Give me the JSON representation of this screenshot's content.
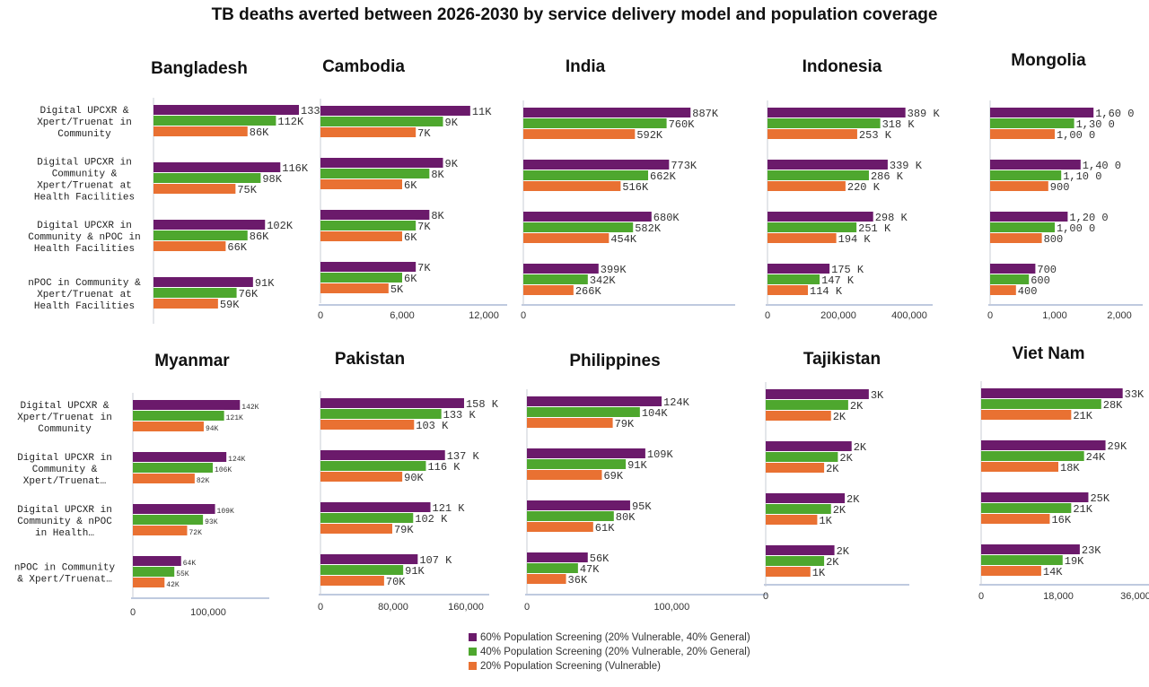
{
  "title": "TB deaths averted between 2026-2030 by service delivery model and population coverage",
  "legend": [
    {
      "label": "60% Population Screening (20% Vulnerable, 40% General)",
      "color": "#6b1a6b"
    },
    {
      "label": "40% Population Screening (20% Vulnerable, 20% General)",
      "color": "#4ea72e"
    },
    {
      "label": "20% Population Screening (Vulnerable)",
      "color": "#e97132"
    }
  ],
  "chart_data": [
    {
      "type": "bar",
      "title": "Bangladesh",
      "categories": [
        "Digital UPCXR & Xpert/Truenat in Community",
        "Digital UPCXR in Community & Xpert/Truenat at Health Facilities",
        "Digital UPCXR in Community & nPOC in Health Facilities",
        "nPOC in Community & Xpert/Truenat at Health Facilities"
      ],
      "series": [
        {
          "name": "60% Population Screening (20% Vulnerable, 40% General)",
          "values": [
            133000,
            116000,
            102000,
            91000
          ],
          "labels": [
            "133K",
            "116K",
            "102K",
            "91K"
          ]
        },
        {
          "name": "40% Population Screening (20% Vulnerable, 20% General)",
          "values": [
            112000,
            98000,
            86000,
            76000
          ],
          "labels": [
            "112K",
            "98K",
            "86K",
            "76K"
          ]
        },
        {
          "name": "20% Population Screening (Vulnerable)",
          "values": [
            86000,
            75000,
            66000,
            59000
          ],
          "labels": [
            "86K",
            "75K",
            "66K",
            "59K"
          ]
        }
      ],
      "xlim": [
        0,
        133000
      ],
      "xticks": []
    },
    {
      "type": "bar",
      "title": "Cambodia",
      "categories": [
        "Digital UPCXR & Xpert/Truenat in Community",
        "Digital UPCXR in Community & Xpert/Truenat at Health Facilities",
        "Digital UPCXR in Community & nPOC in Health Facilities",
        "nPOC in Community & Xpert/Truenat at Health Facilities"
      ],
      "series": [
        {
          "name": "60% Population Screening (20% Vulnerable, 40% General)",
          "values": [
            11000,
            9000,
            8000,
            7000
          ],
          "labels": [
            "11K",
            "9K",
            "8K",
            "7K"
          ]
        },
        {
          "name": "40% Population Screening (20% Vulnerable, 20% General)",
          "values": [
            9000,
            8000,
            7000,
            6000
          ],
          "labels": [
            "9K",
            "8K",
            "7K",
            "6K"
          ]
        },
        {
          "name": "20% Population Screening (Vulnerable)",
          "values": [
            7000,
            6000,
            6000,
            5000
          ],
          "labels": [
            "7K",
            "6K",
            "6K",
            "5K"
          ]
        }
      ],
      "xlim": [
        0,
        12000
      ],
      "xticks": [
        "0",
        "6,000",
        "12,000"
      ]
    },
    {
      "type": "bar",
      "title": "India",
      "categories": [
        "Digital UPCXR & Xpert/Truenat in Community",
        "Digital UPCXR in Community & Xpert/Truenat at Health Facilities",
        "Digital UPCXR in Community & nPOC in Health Facilities",
        "nPOC in Community & Xpert/Truenat at Health Facilities"
      ],
      "series": [
        {
          "name": "60% Population Screening (20% Vulnerable, 40% General)",
          "values": [
            887000,
            773000,
            680000,
            399000
          ],
          "labels": [
            "887K",
            "773K",
            "680K",
            "399K"
          ]
        },
        {
          "name": "40% Population Screening (20% Vulnerable, 20% General)",
          "values": [
            760000,
            662000,
            582000,
            342000
          ],
          "labels": [
            "760K",
            "662K",
            "582K",
            "342K"
          ]
        },
        {
          "name": "20% Population Screening (Vulnerable)",
          "values": [
            592000,
            516000,
            454000,
            266000
          ],
          "labels": [
            "592K",
            "516K",
            "454K",
            "266K"
          ]
        }
      ],
      "xlim": [
        0,
        1000000
      ],
      "xticks": [
        "0"
      ]
    },
    {
      "type": "bar",
      "title": "Indonesia",
      "categories": [
        "Digital UPCXR & Xpert/Truenat in Community",
        "Digital UPCXR in Community & Xpert/Truenat at Health Facilities",
        "Digital UPCXR in Community & nPOC in Health Facilities",
        "nPOC in Community & Xpert/Truenat at Health Facilities"
      ],
      "series": [
        {
          "name": "60% Population Screening (20% Vulnerable, 40% General)",
          "values": [
            389000,
            339000,
            298000,
            175000
          ],
          "labels": [
            "389 K",
            "339 K",
            "298 K",
            "175 K"
          ]
        },
        {
          "name": "40% Population Screening (20% Vulnerable, 20% General)",
          "values": [
            318000,
            286000,
            251000,
            147000
          ],
          "labels": [
            "318 K",
            "286 K",
            "251 K",
            "147 K"
          ]
        },
        {
          "name": "20% Population Screening (Vulnerable)",
          "values": [
            253000,
            220000,
            194000,
            114000
          ],
          "labels": [
            "253 K",
            "220 K",
            "194 K",
            "114 K"
          ]
        }
      ],
      "xlim": [
        0,
        400000
      ],
      "xticks": [
        "0",
        "200,000",
        "400,000"
      ]
    },
    {
      "type": "bar",
      "title": "Mongolia",
      "categories": [
        "Digital UPCXR & Xpert/Truenat in Community",
        "Digital UPCXR in Community & Xpert/Truenat at Health Facilities",
        "Digital UPCXR in Community & nPOC in Health Facilities",
        "nPOC in Community & Xpert/Truenat at Health Facilities"
      ],
      "series": [
        {
          "name": "60% Population Screening (20% Vulnerable, 40% General)",
          "values": [
            1600,
            1400,
            1200,
            700
          ],
          "labels": [
            "1,60 0",
            "1,40 0",
            "1,20 0",
            "700"
          ]
        },
        {
          "name": "40% Population Screening (20% Vulnerable, 20% General)",
          "values": [
            1300,
            1100,
            1000,
            600
          ],
          "labels": [
            "1,30 0",
            "1,10 0",
            "1,00 0",
            "600"
          ]
        },
        {
          "name": "20% Population Screening (Vulnerable)",
          "values": [
            1000,
            900,
            800,
            400
          ],
          "labels": [
            "1,00 0",
            "900",
            "800",
            "400"
          ]
        }
      ],
      "xlim": [
        0,
        2000
      ],
      "xticks": [
        "0",
        "1,000",
        "2,000"
      ]
    },
    {
      "type": "bar",
      "title": "Myanmar",
      "categories": [
        "Digital UPCXR & Xpert/Truenat in Community",
        "Digital UPCXR in Community & Xpert/Truenat…",
        "Digital UPCXR in Community & nPOC in Health…",
        "nPOC in Community & Xpert/Truenat…"
      ],
      "series": [
        {
          "name": "60% Population Screening (20% Vulnerable, 40% General)",
          "values": [
            142000,
            124000,
            109000,
            64000
          ],
          "labels": [
            "142K",
            "124K",
            "109K",
            "64K"
          ]
        },
        {
          "name": "40% Population Screening (20% Vulnerable, 20% General)",
          "values": [
            121000,
            106000,
            93000,
            55000
          ],
          "labels": [
            "121K",
            "106K",
            "93K",
            "55K"
          ]
        },
        {
          "name": "20% Population Screening (Vulnerable)",
          "values": [
            94000,
            82000,
            72000,
            42000
          ],
          "labels": [
            "94K",
            "82K",
            "72K",
            "42K"
          ]
        }
      ],
      "xlim": [
        0,
        150000
      ],
      "xticks": [
        "0",
        "100,000"
      ]
    },
    {
      "type": "bar",
      "title": "Pakistan",
      "categories": [
        "Digital UPCXR & Xpert/Truenat in Community",
        "Digital UPCXR in Community & Xpert/Truenat at Health Facilities",
        "Digital UPCXR in Community & nPOC in Health Facilities",
        "nPOC in Community & Xpert/Truenat at Health Facilities"
      ],
      "series": [
        {
          "name": "60% Population Screening (20% Vulnerable, 40% General)",
          "values": [
            158000,
            137000,
            121000,
            107000
          ],
          "labels": [
            "158 K",
            "137 K",
            "121 K",
            "107 K"
          ]
        },
        {
          "name": "40% Population Screening (20% Vulnerable, 20% General)",
          "values": [
            133000,
            116000,
            102000,
            91000
          ],
          "labels": [
            "133 K",
            "116 K",
            "102 K",
            "91K"
          ]
        },
        {
          "name": "20% Population Screening (Vulnerable)",
          "values": [
            103000,
            90000,
            79000,
            70000
          ],
          "labels": [
            "103 K",
            "90K",
            "79K",
            "70K"
          ]
        }
      ],
      "xlim": [
        0,
        160000
      ],
      "xticks": [
        "0",
        "80,000",
        "160,000"
      ]
    },
    {
      "type": "bar",
      "title": "Philippines",
      "categories": [
        "Digital UPCXR & Xpert/Truenat in Community",
        "Digital UPCXR in Community & Xpert/Truenat at Health Facilities",
        "Digital UPCXR in Community & nPOC in Health Facilities",
        "nPOC in Community & Xpert/Truenat at Health Facilities"
      ],
      "series": [
        {
          "name": "60% Population Screening (20% Vulnerable, 40% General)",
          "values": [
            124000,
            109000,
            95000,
            56000
          ],
          "labels": [
            "124K",
            "109K",
            "95K",
            "56K"
          ]
        },
        {
          "name": "40% Population Screening (20% Vulnerable, 20% General)",
          "values": [
            104000,
            91000,
            80000,
            47000
          ],
          "labels": [
            "104K",
            "91K",
            "80K",
            "47K"
          ]
        },
        {
          "name": "20% Population Screening (Vulnerable)",
          "values": [
            79000,
            69000,
            61000,
            36000
          ],
          "labels": [
            "79K",
            "69K",
            "61K",
            "36K"
          ]
        }
      ],
      "xlim": [
        0,
        200000
      ],
      "xticks": [
        "0",
        "100,000"
      ]
    },
    {
      "type": "bar",
      "title": "Tajikistan",
      "categories": [
        "Digital UPCXR & Xpert/Truenat in Community",
        "Digital UPCXR in Community & Xpert/Truenat at Health Facilities",
        "Digital UPCXR in Community & nPOC in Health Facilities",
        "nPOC in Community & Xpert/Truenat at Health Facilities"
      ],
      "series": [
        {
          "name": "60% Population Screening (20% Vulnerable, 40% General)",
          "values": [
            3000,
            2500,
            2300,
            2000
          ],
          "labels": [
            "3K",
            "2K",
            "2K",
            "2K"
          ]
        },
        {
          "name": "40% Population Screening (20% Vulnerable, 20% General)",
          "values": [
            2400,
            2100,
            1900,
            1700
          ],
          "labels": [
            "2K",
            "2K",
            "2K",
            "2K"
          ]
        },
        {
          "name": "20% Population Screening (Vulnerable)",
          "values": [
            1900,
            1700,
            1500,
            1300
          ],
          "labels": [
            "2K",
            "2K",
            "1K",
            "1K"
          ]
        }
      ],
      "xlim": [
        0,
        3500
      ],
      "xticks": [
        "0"
      ]
    },
    {
      "type": "bar",
      "title": "Viet Nam",
      "categories": [
        "Digital UPCXR & Xpert/Truenat in Community",
        "Digital UPCXR in Community & Xpert/Truenat at Health Facilities",
        "Digital UPCXR in Community & nPOC in Health Facilities",
        "nPOC in Community & Xpert/Truenat at Health Facilities"
      ],
      "series": [
        {
          "name": "60% Population Screening (20% Vulnerable, 40% General)",
          "values": [
            33000,
            29000,
            25000,
            23000
          ],
          "labels": [
            "33K",
            "29K",
            "25K",
            "23K"
          ]
        },
        {
          "name": "40% Population Screening (20% Vulnerable, 20% General)",
          "values": [
            28000,
            24000,
            21000,
            19000
          ],
          "labels": [
            "28K",
            "24K",
            "21K",
            "19K"
          ]
        },
        {
          "name": "20% Population Screening (Vulnerable)",
          "values": [
            21000,
            18000,
            16000,
            14000
          ],
          "labels": [
            "21K",
            "18K",
            "16K",
            "14K"
          ]
        }
      ],
      "xlim": [
        0,
        36000
      ],
      "xticks": [
        "0",
        "18,000",
        "36,000"
      ]
    }
  ]
}
